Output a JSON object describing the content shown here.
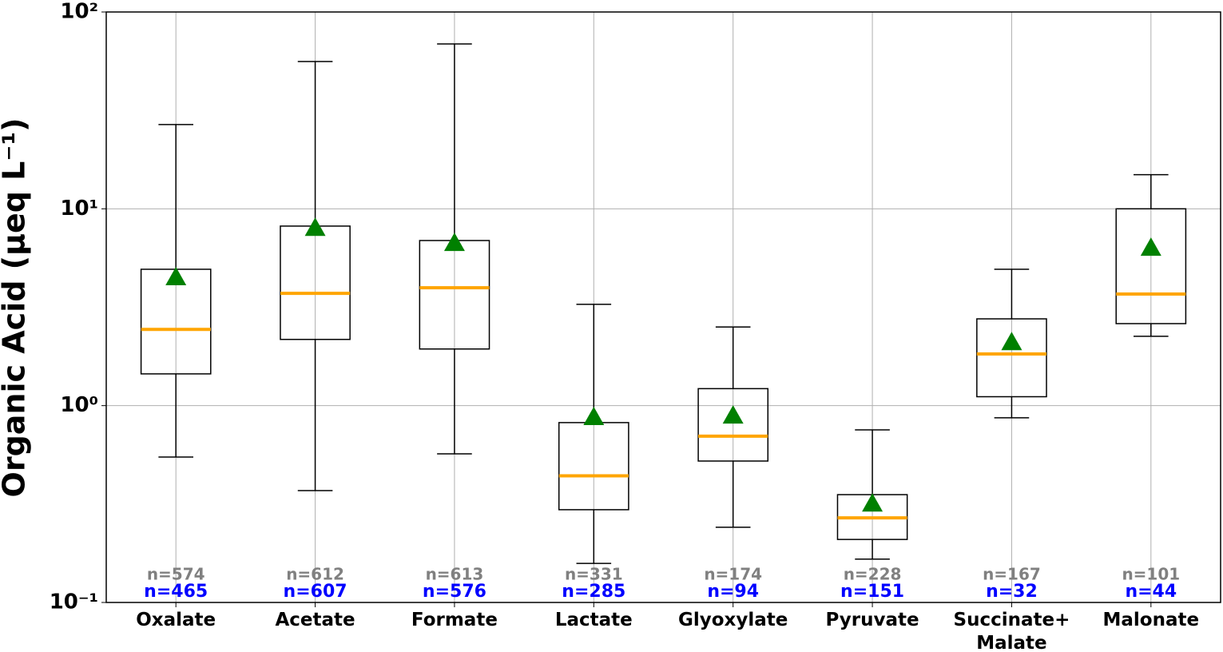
{
  "chart_data": {
    "type": "box",
    "ylabel": "Organic Acid (μeq L⁻¹)",
    "log_y": true,
    "grid": true,
    "categories": [
      "Oxalate",
      "Acetate",
      "Formate",
      "Lactate",
      "Glyoxylate",
      "Pyruvate",
      "Succinate+\nMalate",
      "Malonate"
    ],
    "boxes": [
      {
        "whislo": 0.548,
        "q1": 1.45,
        "med": 2.44,
        "q3": 4.93,
        "whishi": 26.8,
        "mean": 4.49
      },
      {
        "whislo": 0.37,
        "q1": 2.17,
        "med": 3.72,
        "q3": 8.17,
        "whishi": 56,
        "mean": 8.0
      },
      {
        "whislo": 0.569,
        "q1": 1.94,
        "med": 3.97,
        "q3": 6.9,
        "whishi": 68.8,
        "mean": 6.7
      },
      {
        "whislo": 0.158,
        "q1": 0.296,
        "med": 0.44,
        "q3": 0.82,
        "whishi": 3.27,
        "mean": 0.875
      },
      {
        "whislo": 0.241,
        "q1": 0.523,
        "med": 0.7,
        "q3": 1.22,
        "whishi": 2.51,
        "mean": 0.89
      },
      {
        "whislo": 0.166,
        "q1": 0.209,
        "med": 0.269,
        "q3": 0.353,
        "whishi": 0.753,
        "mean": 0.318
      },
      {
        "whislo": 0.867,
        "q1": 1.11,
        "med": 1.83,
        "q3": 2.76,
        "whishi": 4.93,
        "mean": 2.1
      },
      {
        "whislo": 2.25,
        "q1": 2.61,
        "med": 3.69,
        "q3": 10.0,
        "whishi": 14.9,
        "mean": 6.34
      }
    ],
    "counts_all": [
      "n=574",
      "n=612",
      "n=613",
      "n=331",
      "n=174",
      "n=228",
      "n=167",
      "n=101"
    ],
    "counts_used": [
      "n=465",
      "n=607",
      "n=576",
      "n=285",
      "n=94",
      "n=151",
      "n=32",
      "n=44"
    ],
    "box_color": "#000000",
    "median_color": "#ffa500",
    "mean_color": "#008000",
    "counts_all_color": "#808080",
    "counts_used_color": "#0000ff",
    "ylim": [
      0.1,
      100
    ],
    "yticks": [
      {
        "value": 0.1,
        "label": "10⁻¹"
      },
      {
        "value": 1,
        "label": "10⁰"
      },
      {
        "value": 10,
        "label": "10¹"
      },
      {
        "value": 100,
        "label": "10²"
      }
    ]
  }
}
